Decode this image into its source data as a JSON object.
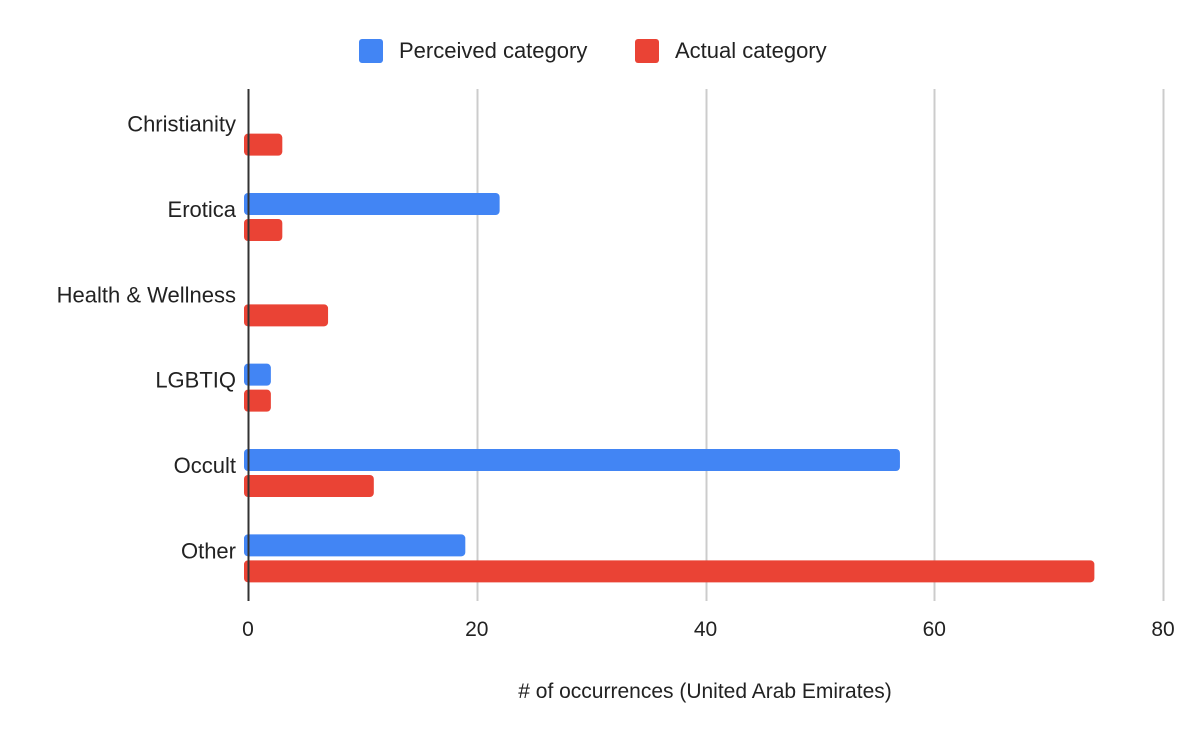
{
  "chart_data": {
    "type": "bar",
    "orientation": "horizontal",
    "title": "",
    "xlabel": "# of occurrences (United Arab Emirates)",
    "ylabel": "",
    "categories": [
      "Christianity",
      "Erotica",
      "Health & Wellness",
      "LGBTIQ",
      "Occult",
      "Other"
    ],
    "series": [
      {
        "name": "Perceived category",
        "color": "#4285f4",
        "values": [
          0,
          22,
          0,
          2,
          57,
          19
        ]
      },
      {
        "name": "Actual category",
        "color": "#ea4335",
        "values": [
          3,
          3,
          7,
          2,
          11,
          74
        ]
      }
    ],
    "xlim": [
      0,
      80
    ],
    "xticks": [
      "0",
      "20",
      "40",
      "60",
      "80"
    ],
    "grid": true,
    "legend_position": "top"
  }
}
